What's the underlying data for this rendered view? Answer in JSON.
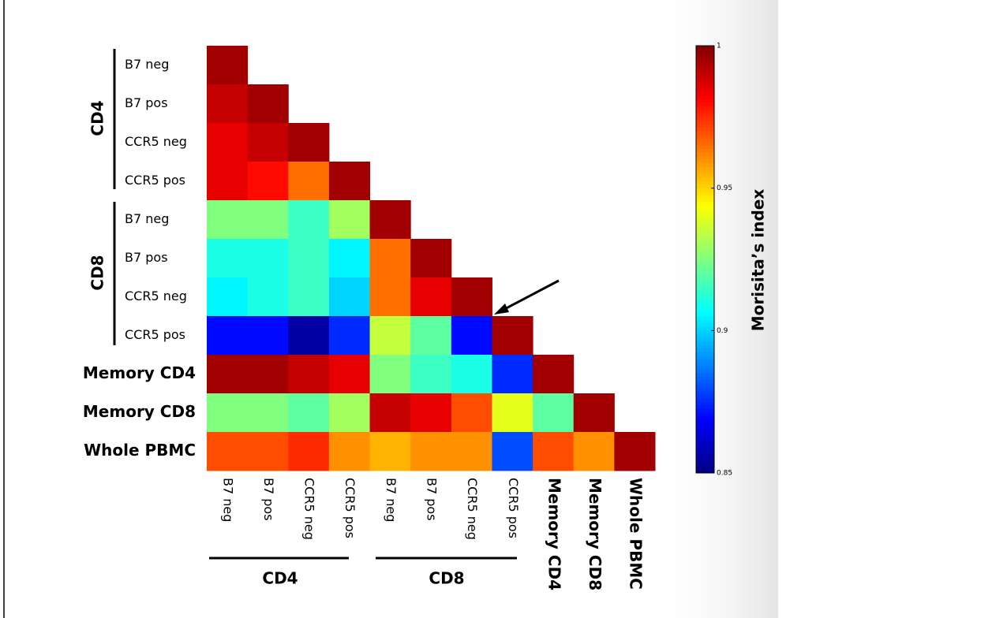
{
  "chart_data": {
    "type": "heatmap",
    "rows": [
      "B7 neg",
      "B7 pos",
      "CCR5 neg",
      "CCR5 pos",
      "B7 neg",
      "B7 pos",
      "CCR5 neg",
      "CCR5 pos",
      "Memory CD4",
      "Memory CD8",
      "Whole PBMC"
    ],
    "columns": [
      "B7 neg",
      "B7 pos",
      "CCR5 neg",
      "CCR5 pos",
      "B7 neg",
      "B7 pos",
      "CCR5 neg",
      "CCR5 pos",
      "Memory CD4",
      "Memory CD8",
      "Whole PBMC"
    ],
    "row_groups": [
      "CD4",
      "CD8"
    ],
    "col_groups": [
      "CD4",
      "CD8"
    ],
    "values": [
      [
        0.995
      ],
      [
        0.99,
        0.995
      ],
      [
        0.985,
        0.99,
        0.995
      ],
      [
        0.985,
        0.98,
        0.965,
        0.995
      ],
      [
        0.925,
        0.925,
        0.915,
        0.93,
        0.995
      ],
      [
        0.91,
        0.91,
        0.915,
        0.905,
        0.965,
        0.995
      ],
      [
        0.905,
        0.91,
        0.915,
        0.9,
        0.965,
        0.985,
        0.995
      ],
      [
        0.87,
        0.87,
        0.855,
        0.875,
        0.935,
        0.92,
        0.87,
        0.995
      ],
      [
        0.995,
        0.995,
        0.99,
        0.985,
        0.925,
        0.915,
        0.91,
        0.875,
        0.995
      ],
      [
        0.925,
        0.925,
        0.92,
        0.93,
        0.99,
        0.985,
        0.97,
        0.94,
        0.92,
        0.995
      ],
      [
        0.97,
        0.97,
        0.975,
        0.96,
        0.955,
        0.96,
        0.96,
        0.88,
        0.97,
        0.96,
        0.995
      ]
    ],
    "colormap": "jet",
    "clim": [
      0.85,
      1
    ],
    "cticks": [
      0.85,
      0.9,
      0.95,
      1
    ],
    "colorbar_label": "Morisita’s index"
  }
}
